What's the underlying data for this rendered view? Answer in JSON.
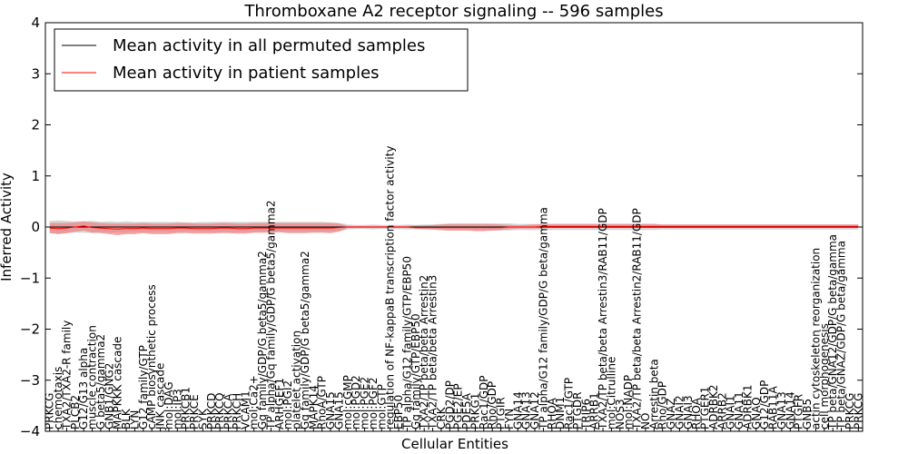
{
  "chart_data": {
    "type": "line",
    "title": "Thromboxane A2 receptor signaling -- 596 samples",
    "xlabel": "Cellular Entities",
    "ylabel": "Inferred Activity",
    "ylim": [
      -4,
      4
    ],
    "yticks": [
      "4",
      "3",
      "2",
      "1",
      "0",
      "−1",
      "−2",
      "−3",
      "−4"
    ],
    "legend": {
      "placement": "top-left",
      "entries": [
        {
          "name": "Mean activity in all permuted samples",
          "color": "#000000"
        },
        {
          "name": "Mean activity in patient samples",
          "color": "#ff0000"
        }
      ]
    },
    "colors": {
      "patient": "#ff0000",
      "patient_band": "#f08080",
      "permuted_band": "#c8c8c8",
      "permuted": "#000000"
    },
    "categories": [
      "PRKCG",
      "chemotaxis",
      "TXA2/TXA2-R family",
      "PLCB2",
      "G12/G13 alpha",
      "muscle contraction",
      "G beta5/gamma2",
      "GNB1/GNG2",
      "MAPKKK cascade",
      "BLK",
      "LYN",
      "G12 family/GTP",
      "cAMP biosynthetic process",
      "JNK cascade",
      "mol:DAG",
      "mol:IP3",
      "PRKCB1",
      "PRKCE",
      "SYK",
      "PRKCD",
      "PRKCQ",
      "PRKCA",
      "PRKCH",
      "VCAM1",
      "mol:Ca2+",
      "Gq family/GDP/G beta5/gamma2",
      "TP alpha/Gq family/GDP/G beta5/gamma2",
      "ARHGEF1",
      "mol:PGI2",
      "platelet activation",
      "Gq family/GDP/G beta5/gamma2",
      "MAPK14",
      "RhoA/GTP",
      "GNA15",
      "GNA15",
      "mol:cGMP",
      "mol:PGD2",
      "mol:PGE2",
      "mol:PGF2",
      "mol:GTP",
      "regulation of NF-kappaB transcription factor activity",
      "EBP50",
      "TP alpha/G12 family/GTP/EBP50",
      "Gq family/GTP/EBP50",
      "TXA2/TP beta/beta Arrestin2",
      "TXA2/TP beta/beta Arrestin3",
      "CRK",
      "PGD2/DP",
      "PGE2/EP",
      "PDE5A",
      "PRKG1",
      "Rac1/GDP",
      "Rho/GDP",
      "PTGIR",
      "FYN",
      "GNA14",
      "GNA13",
      "GNA12",
      "TP alpha/G12 family/GDP/G beta/gamma",
      "RHOA",
      "DNM1",
      "Rac1/GTP",
      "PTGDR",
      "TRIP6",
      "ARRB1",
      "TXA2/TP beta/beta Arrestin3/RAB11/GDP",
      "mol:Citrulline",
      "NOS3",
      "mol:NADP",
      "TXA2/TP beta/beta Arrestin2/RAB11/GDP",
      "NO",
      "Arrestin beta",
      "Rho/GDP",
      "GNAZ",
      "GNAI2",
      "GNAI3",
      "RHOA",
      "PTGER1",
      "ADRBK2",
      "ARRB2",
      "GNAI1",
      "GNA11",
      "ADRBK1",
      "GNAQ",
      "G12/GDP",
      "RAB11A",
      "GNA13",
      "GNA14",
      "PTGFR",
      "GNB5",
      "actin cytoskeleton reorganization",
      "cell morphogenesis",
      "TP beta/GNA12/GDP/G beta/gamma",
      "TP beta/GNAZ/GDP/G beta/gamma",
      "PRKCG",
      "PRKCG"
    ],
    "series": [
      {
        "name": "Mean activity in all permuted samples",
        "color": "#000000",
        "values": [
          0.0,
          0.0,
          0.0,
          0.0,
          0.0,
          0.0,
          0.0,
          0.0,
          0.0,
          0.0,
          0.0,
          0.0,
          0.0,
          0.0,
          0.0,
          0.0,
          0.0,
          0.0,
          0.0,
          0.0,
          0.0,
          0.0,
          0.0,
          0.0,
          0.0,
          0.0,
          0.0,
          0.0,
          0.0,
          0.0,
          0.0,
          0.0,
          0.0,
          0.0,
          0.0,
          0.0,
          0.0,
          0.0,
          0.0,
          0.0,
          0.0,
          0.0,
          0.0,
          0.0,
          0.0,
          0.0,
          0.0,
          0.0,
          0.0,
          0.0,
          0.0,
          0.0,
          0.0,
          0.0,
          0.0,
          0.0,
          0.0,
          0.0,
          0.0,
          0.0,
          0.0,
          0.0,
          0.0,
          0.0,
          0.0,
          0.0,
          0.0,
          0.0,
          0.0,
          0.0,
          0.0,
          0.0,
          0.0,
          0.0,
          0.0,
          0.0,
          0.0,
          0.0,
          0.0,
          0.0,
          0.0,
          0.0,
          0.0,
          0.0,
          0.0,
          0.0,
          0.0,
          0.0,
          0.0,
          0.0,
          0.0,
          0.0,
          0.0,
          0.0,
          0.0,
          0.0
        ],
        "band_low": [
          -0.12,
          -0.13,
          -0.12,
          -0.11,
          -0.11,
          -0.12,
          -0.1,
          -0.11,
          -0.1,
          -0.11,
          -0.1,
          -0.1,
          -0.1,
          -0.1,
          -0.1,
          -0.1,
          -0.09,
          -0.09,
          -0.1,
          -0.1,
          -0.1,
          -0.1,
          -0.1,
          -0.1,
          -0.1,
          -0.1,
          -0.1,
          -0.1,
          -0.1,
          -0.1,
          -0.1,
          -0.1,
          -0.1,
          -0.09,
          -0.08,
          -0.05,
          -0.04,
          -0.04,
          -0.05,
          -0.04,
          -0.04,
          -0.04,
          -0.05,
          -0.04,
          -0.05,
          -0.05,
          -0.06,
          -0.07,
          -0.07,
          -0.07,
          -0.07,
          -0.07,
          -0.07,
          -0.07,
          -0.07,
          -0.06,
          -0.06,
          -0.06,
          -0.06,
          -0.06,
          -0.06,
          -0.06,
          -0.06,
          -0.06,
          -0.06,
          -0.06,
          -0.06,
          -0.06,
          -0.06,
          -0.06,
          -0.06,
          -0.06,
          -0.05,
          -0.05,
          -0.05,
          -0.05,
          -0.05,
          -0.05,
          -0.05,
          -0.05,
          -0.05,
          -0.05,
          -0.05,
          -0.05,
          -0.05,
          -0.05,
          -0.05,
          -0.05,
          -0.05,
          -0.05,
          -0.05,
          -0.05,
          -0.05,
          -0.05,
          -0.05,
          -0.05
        ],
        "band_high": [
          0.12,
          0.13,
          0.12,
          0.11,
          0.11,
          0.12,
          0.1,
          0.11,
          0.1,
          0.11,
          0.1,
          0.1,
          0.1,
          0.1,
          0.1,
          0.1,
          0.09,
          0.09,
          0.1,
          0.1,
          0.1,
          0.1,
          0.1,
          0.1,
          0.1,
          0.1,
          0.1,
          0.1,
          0.1,
          0.1,
          0.1,
          0.1,
          0.1,
          0.09,
          0.08,
          0.05,
          0.04,
          0.04,
          0.05,
          0.04,
          0.04,
          0.04,
          0.05,
          0.04,
          0.05,
          0.05,
          0.06,
          0.07,
          0.07,
          0.07,
          0.07,
          0.07,
          0.07,
          0.07,
          0.07,
          0.06,
          0.06,
          0.06,
          0.06,
          0.06,
          0.06,
          0.06,
          0.06,
          0.06,
          0.06,
          0.06,
          0.06,
          0.06,
          0.06,
          0.06,
          0.06,
          0.06,
          0.05,
          0.05,
          0.05,
          0.05,
          0.05,
          0.05,
          0.05,
          0.05,
          0.05,
          0.05,
          0.05,
          0.05,
          0.05,
          0.05,
          0.05,
          0.05,
          0.05,
          0.05,
          0.05,
          0.05,
          0.05,
          0.05,
          0.05,
          0.05
        ]
      },
      {
        "name": "Mean activity in patient samples",
        "color": "#ff0000",
        "values": [
          -0.02,
          -0.03,
          -0.02,
          0.0,
          0.02,
          -0.01,
          -0.02,
          -0.03,
          -0.04,
          -0.03,
          -0.03,
          -0.02,
          -0.03,
          -0.03,
          -0.03,
          -0.02,
          -0.02,
          -0.03,
          -0.03,
          -0.03,
          -0.02,
          -0.02,
          -0.03,
          -0.03,
          -0.02,
          -0.02,
          -0.02,
          -0.02,
          -0.02,
          -0.02,
          -0.02,
          -0.02,
          -0.02,
          -0.02,
          -0.01,
          0.0,
          0.0,
          0.0,
          0.0,
          0.0,
          0.0,
          0.0,
          0.0,
          -0.01,
          -0.01,
          -0.01,
          -0.01,
          -0.01,
          -0.01,
          -0.01,
          -0.01,
          -0.01,
          -0.01,
          -0.01,
          0.0,
          0.0,
          0.0,
          0.0,
          0.01,
          0.01,
          0.01,
          0.01,
          0.01,
          0.01,
          0.01,
          0.01,
          0.01,
          0.01,
          0.01,
          0.01,
          0.01,
          0.01,
          0.01,
          0.01,
          0.01,
          0.01,
          0.01,
          0.01,
          0.01,
          0.01,
          0.01,
          0.01,
          0.01,
          0.01,
          0.01,
          0.01,
          0.01,
          0.01,
          0.01,
          0.01,
          0.01,
          0.01,
          0.01,
          0.01,
          0.01,
          0.01
        ],
        "band_low": [
          -0.12,
          -0.14,
          -0.12,
          -0.09,
          -0.07,
          -0.11,
          -0.12,
          -0.14,
          -0.16,
          -0.14,
          -0.14,
          -0.12,
          -0.14,
          -0.14,
          -0.14,
          -0.12,
          -0.12,
          -0.13,
          -0.13,
          -0.13,
          -0.12,
          -0.12,
          -0.13,
          -0.13,
          -0.11,
          -0.11,
          -0.11,
          -0.1,
          -0.12,
          -0.12,
          -0.12,
          -0.11,
          -0.11,
          -0.12,
          -0.09,
          -0.02,
          -0.02,
          -0.02,
          -0.02,
          -0.02,
          -0.02,
          -0.02,
          -0.02,
          -0.04,
          -0.04,
          -0.05,
          -0.06,
          -0.07,
          -0.07,
          -0.07,
          -0.08,
          -0.08,
          -0.07,
          -0.06,
          -0.04,
          -0.03,
          -0.03,
          -0.03,
          -0.02,
          -0.02,
          -0.02,
          -0.02,
          -0.02,
          -0.02,
          -0.02,
          -0.02,
          -0.02,
          -0.02,
          -0.02,
          -0.02,
          -0.02,
          -0.02,
          -0.02,
          -0.02,
          -0.02,
          -0.02,
          -0.02,
          -0.02,
          -0.02,
          -0.02,
          -0.02,
          -0.02,
          -0.02,
          -0.02,
          -0.02,
          -0.02,
          -0.02,
          -0.02,
          -0.02,
          -0.02,
          -0.02,
          -0.02,
          -0.02,
          -0.02,
          -0.02,
          -0.02
        ],
        "band_high": [
          0.08,
          0.08,
          0.08,
          0.09,
          0.11,
          0.09,
          0.08,
          0.07,
          0.07,
          0.07,
          0.07,
          0.08,
          0.07,
          0.07,
          0.07,
          0.08,
          0.08,
          0.07,
          0.07,
          0.07,
          0.08,
          0.08,
          0.07,
          0.07,
          0.08,
          0.08,
          0.08,
          0.08,
          0.08,
          0.08,
          0.08,
          0.08,
          0.08,
          0.08,
          0.07,
          0.02,
          0.02,
          0.02,
          0.02,
          0.02,
          0.02,
          0.02,
          0.02,
          0.03,
          0.03,
          0.04,
          0.05,
          0.06,
          0.06,
          0.06,
          0.06,
          0.06,
          0.06,
          0.05,
          0.04,
          0.03,
          0.04,
          0.05,
          0.06,
          0.06,
          0.06,
          0.06,
          0.06,
          0.06,
          0.06,
          0.06,
          0.06,
          0.06,
          0.06,
          0.06,
          0.06,
          0.06,
          0.05,
          0.05,
          0.05,
          0.05,
          0.05,
          0.05,
          0.05,
          0.05,
          0.05,
          0.05,
          0.05,
          0.05,
          0.05,
          0.05,
          0.05,
          0.05,
          0.05,
          0.05,
          0.05,
          0.05,
          0.05,
          0.05,
          0.05,
          0.05
        ]
      }
    ]
  }
}
